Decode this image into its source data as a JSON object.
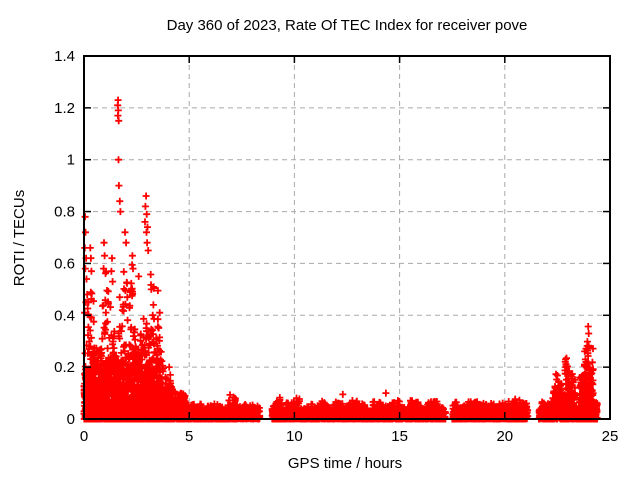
{
  "chart_data": {
    "type": "scatter",
    "title": "Day 360 of 2023, Rate Of TEC Index for receiver pove",
    "xlabel": "GPS time / hours",
    "ylabel": "ROTI / TECUs",
    "xlim": [
      0,
      25
    ],
    "ylim": [
      0,
      1.4
    ],
    "xticks": [
      "0",
      "5",
      "10",
      "15",
      "20",
      "25"
    ],
    "yticks": [
      "0",
      "0.2",
      "0.4",
      "0.6",
      "0.8",
      "1",
      "1.2",
      "1.4"
    ],
    "grid": {
      "visible": true,
      "style": "dashed",
      "color": "#a9a9a9"
    },
    "marker": {
      "shape": "plus",
      "color": "#ff0000",
      "size": 7,
      "stroke_width": 1.8
    },
    "axis_color": "#000000",
    "background": "#ffffff",
    "legend": "none",
    "seed": 20231360,
    "series": [
      {
        "name": "ROTI",
        "description": "Rate of TEC index vs GPS time; dense activity 0-4.5h peaking 1.23 TECU near 1.6h, quiet low band (<0.1) 5-24h with data gaps at 8.4-8.9h, 17.2-17.5h, 21.1-21.6h, and renewed spikes up to 0.37 near 23-24h",
        "segments": [
          {
            "t0": 0.0,
            "t1": 3.6,
            "n": 2000,
            "ymin": 0,
            "ymax": 0.3,
            "pow": 2.6,
            "colfreq": 14,
            "colpow": 0.5
          },
          {
            "t0": 0.0,
            "t1": 3.6,
            "n": 400,
            "ymin": 0.1,
            "ymax": 0.62,
            "pow": 1.6,
            "colfreq": 6,
            "colpow": 1.4
          },
          {
            "t0": 3.6,
            "t1": 5.0,
            "n": 520,
            "ymin": 0,
            "env": [
              [
                3.6,
                0.3
              ],
              [
                4.0,
                0.2
              ],
              [
                4.4,
                0.13
              ],
              [
                5.0,
                0.085
              ]
            ],
            "pow": 2.0,
            "colfreq": 14,
            "colpow": 0.8
          },
          {
            "t0": 5.0,
            "t1": 8.35,
            "n": 820,
            "ymin": 0,
            "ymax": 0.062,
            "pow": 2.0,
            "colfreq": 12,
            "colpow": 0.6
          },
          {
            "t0": 6.8,
            "t1": 7.2,
            "n": 60,
            "ymin": 0,
            "ymax": 0.115,
            "pow": 1.6,
            "colfreq": 10,
            "colpow": 0.8
          },
          {
            "t0": 8.94,
            "t1": 17.18,
            "n": 1750,
            "ymin": 0,
            "ymax": 0.075,
            "pow": 2.2,
            "colfreq": 10,
            "colpow": 0.6
          },
          {
            "t0": 9.1,
            "t1": 9.35,
            "n": 40,
            "ymin": 0,
            "ymax": 0.1,
            "pow": 1.5,
            "colfreq": 10,
            "colpow": 0.8
          },
          {
            "t0": 9.95,
            "t1": 10.25,
            "n": 50,
            "ymin": 0,
            "ymax": 0.105,
            "pow": 1.5,
            "colfreq": 10,
            "colpow": 0.8
          },
          {
            "t0": 17.5,
            "t1": 21.1,
            "n": 760,
            "ymin": 0,
            "ymax": 0.072,
            "pow": 2.2,
            "colfreq": 10,
            "colpow": 0.6
          },
          {
            "t0": 20.15,
            "t1": 21.05,
            "n": 110,
            "ymin": 0,
            "ymax": 0.095,
            "pow": 1.8,
            "colfreq": 10,
            "colpow": 0.7
          },
          {
            "t0": 21.62,
            "t1": 24.4,
            "n": 620,
            "ymin": 0,
            "ymax": 0.08,
            "pow": 2.1,
            "colfreq": 10,
            "colpow": 0.6
          },
          {
            "t0": 22.25,
            "t1": 22.75,
            "n": 70,
            "ymin": 0.03,
            "ymax": 0.21,
            "pow": 1.6,
            "colfreq": 8,
            "colpow": 0.9
          },
          {
            "t0": 22.85,
            "t1": 23.35,
            "n": 110,
            "ymin": 0.03,
            "ymax": 0.31,
            "pow": 1.5,
            "colfreq": 8,
            "colpow": 0.9
          },
          {
            "t0": 23.55,
            "t1": 24.2,
            "n": 200,
            "ymin": 0.03,
            "ymax": 0.37,
            "pow": 1.6,
            "colfreq": 8,
            "colpow": 0.9
          }
        ],
        "outliers": [
          [
            0.05,
            0.78
          ],
          [
            0.07,
            0.72
          ],
          [
            0.04,
            0.66
          ],
          [
            0.1,
            0.62
          ],
          [
            0.06,
            0.58
          ],
          [
            0.12,
            0.54
          ],
          [
            0.15,
            0.48
          ],
          [
            0.09,
            0.45
          ],
          [
            0.03,
            0.41
          ],
          [
            0.3,
            0.66
          ],
          [
            0.33,
            0.62
          ],
          [
            0.35,
            0.57
          ],
          [
            0.95,
            0.68
          ],
          [
            0.98,
            0.63
          ],
          [
            0.93,
            0.58
          ],
          [
            1.33,
            0.62
          ],
          [
            1.3,
            0.57
          ],
          [
            1.36,
            0.53
          ],
          [
            1.62,
            1.23
          ],
          [
            1.6,
            1.21
          ],
          [
            1.63,
            1.19
          ],
          [
            1.61,
            1.17
          ],
          [
            1.65,
            1.15
          ],
          [
            1.64,
            1.0
          ],
          [
            1.66,
            0.9
          ],
          [
            1.7,
            0.84
          ],
          [
            1.73,
            0.8
          ],
          [
            1.95,
            0.72
          ],
          [
            2.0,
            0.68
          ],
          [
            2.3,
            0.63
          ],
          [
            2.33,
            0.58
          ],
          [
            2.6,
            0.55
          ],
          [
            2.95,
            0.86
          ],
          [
            2.92,
            0.82
          ],
          [
            2.98,
            0.79
          ],
          [
            2.9,
            0.76
          ],
          [
            3.02,
            0.74
          ],
          [
            2.97,
            0.72
          ],
          [
            3.0,
            0.68
          ],
          [
            3.05,
            0.65
          ],
          [
            3.2,
            0.5
          ],
          [
            3.3,
            0.44
          ],
          [
            4.05,
            0.2
          ],
          [
            4.1,
            0.17
          ],
          [
            12.3,
            0.095
          ],
          [
            14.35,
            0.1
          ]
        ]
      }
    ]
  }
}
